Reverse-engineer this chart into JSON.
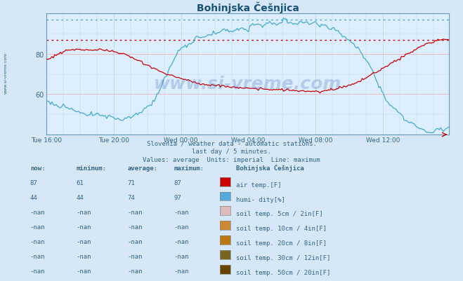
{
  "title": "Bohinjska Češnjica",
  "title_color": "#1a5276",
  "bg_color": "#d6e8f8",
  "plot_bg_color": "#ddeeff",
  "grid_color": "#b8cce4",
  "x_tick_labels": [
    "Tue 16:00",
    "Tue 20:00",
    "Wed 00:00",
    "Wed 04:00",
    "Wed 08:00",
    "Wed 12:00"
  ],
  "x_tick_positions": [
    0,
    48,
    96,
    144,
    192,
    240
  ],
  "total_points": 288,
  "y_ticks": [
    60,
    80
  ],
  "red_max_line": 87,
  "cyan_max_line": 97,
  "ylim_low": 40,
  "ylim_high": 100,
  "footer_lines": [
    "Slovenia / weather data - automatic stations.",
    "last day / 5 minutes.",
    "Values: average  Units: imperial  Line: maximum"
  ],
  "table_header": [
    "now:",
    "minimum:",
    "average:",
    "maximum:",
    "Bohinjska Češnjica"
  ],
  "table_rows": [
    {
      "now": "87",
      "min": "61",
      "avg": "71",
      "max": "87",
      "color": "#cc0000",
      "label": "air temp.[F]"
    },
    {
      "now": "44",
      "min": "44",
      "avg": "74",
      "max": "97",
      "color": "#55aadd",
      "label": "humi- dity[%]"
    },
    {
      "now": "-nan",
      "min": "-nan",
      "avg": "-nan",
      "max": "-nan",
      "color": "#ddbbbb",
      "label": "soil temp. 5cm / 2in[F]"
    },
    {
      "now": "-nan",
      "min": "-nan",
      "avg": "-nan",
      "max": "-nan",
      "color": "#cc8833",
      "label": "soil temp. 10cm / 4in[F]"
    },
    {
      "now": "-nan",
      "min": "-nan",
      "avg": "-nan",
      "max": "-nan",
      "color": "#bb7711",
      "label": "soil temp. 20cm / 8in[F]"
    },
    {
      "now": "-nan",
      "min": "-nan",
      "avg": "-nan",
      "max": "-nan",
      "color": "#776622",
      "label": "soil temp. 30cm / 12in[F]"
    },
    {
      "now": "-nan",
      "min": "-nan",
      "avg": "-nan",
      "max": "-nan",
      "color": "#664400",
      "label": "soil temp. 50cm / 20in[F]"
    }
  ],
  "watermark": "www.si-vreme.com",
  "watermark_color": "#2255aa",
  "watermark_alpha": 0.22,
  "red_line_color": "#cc0000",
  "cyan_line_color": "#44aacc",
  "red_grid_color": "#f0b0b0",
  "cyan_grid_color": "#b8d8f0"
}
